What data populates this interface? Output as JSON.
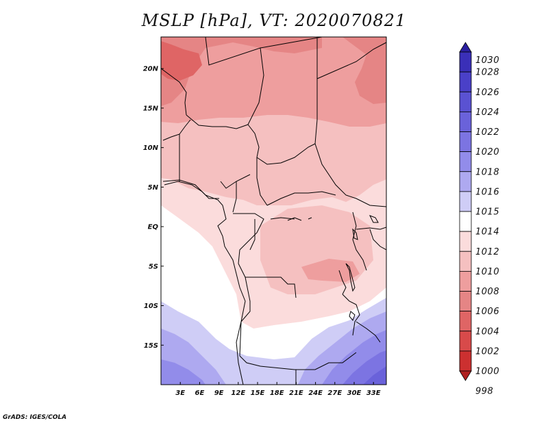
{
  "title": "MSLP [hPa], VT: 2020070821",
  "credit": "GrADS: IGES/COLA",
  "chart_data": {
    "type": "heatmap",
    "title": "MSLP [hPa], VT: 2020070821",
    "variable": "MSLP",
    "units": "hPa",
    "valid_time": "2020070821",
    "xlim": [
      0,
      35
    ],
    "ylim": [
      -20,
      24
    ],
    "lat_ticks": [
      {
        "value": 20,
        "label": "20N"
      },
      {
        "value": 15,
        "label": "15N"
      },
      {
        "value": 10,
        "label": "10N"
      },
      {
        "value": 5,
        "label": "5N"
      },
      {
        "value": 0,
        "label": "EQ"
      },
      {
        "value": -5,
        "label": "5S"
      },
      {
        "value": -10,
        "label": "10S"
      },
      {
        "value": -15,
        "label": "15S"
      }
    ],
    "lon_ticks": [
      {
        "value": 3,
        "label": "3E"
      },
      {
        "value": 6,
        "label": "6E"
      },
      {
        "value": 9,
        "label": "9E"
      },
      {
        "value": 12,
        "label": "12E"
      },
      {
        "value": 15,
        "label": "15E"
      },
      {
        "value": 18,
        "label": "18E"
      },
      {
        "value": 21,
        "label": "21E"
      },
      {
        "value": 24,
        "label": "24E"
      },
      {
        "value": 27,
        "label": "27E"
      },
      {
        "value": 30,
        "label": "30E"
      },
      {
        "value": 33,
        "label": "33E"
      }
    ],
    "colorbar": {
      "levels": [
        "1030",
        "1028",
        "1026",
        "1024",
        "1022",
        "1020",
        "1018",
        "1016",
        "1015",
        "1014",
        "1012",
        "1010",
        "1008",
        "1006",
        "1004",
        "1002",
        "1000",
        "998"
      ],
      "colors": [
        "#2a1fa0",
        "#3a2fb8",
        "#4a40c8",
        "#5a52d2",
        "#6a62da",
        "#7c74e2",
        "#928cea",
        "#aea9f0",
        "#cfcdf6",
        "#ffffff",
        "#fbdcdc",
        "#f5c0c0",
        "#ee9e9e",
        "#e58585",
        "#df6565",
        "#d84a4a",
        "#cc3030",
        "#b02020"
      ]
    },
    "pressure_bands": [
      {
        "region": "northwest Sahara near 20N 0E",
        "hPa": 1004
      },
      {
        "region": "northeast near 17N 33E",
        "hPa": 1006
      },
      {
        "region": "Sahel 13-22N",
        "hPa": 1008
      },
      {
        "region": "north-central 10-14N",
        "hPa": 1010
      },
      {
        "region": "Congo basin 0-8S",
        "hPa": 1012
      },
      {
        "region": "Gulf of Guinea / Atlantic near EQ",
        "hPa": 1014
      },
      {
        "region": "Angola coast 10-15S",
        "hPa": 1015
      },
      {
        "region": "southern Africa 15-20S",
        "hPa": 1018
      },
      {
        "region": "southeast corner near 18S 33E",
        "hPa": 1022
      }
    ]
  }
}
